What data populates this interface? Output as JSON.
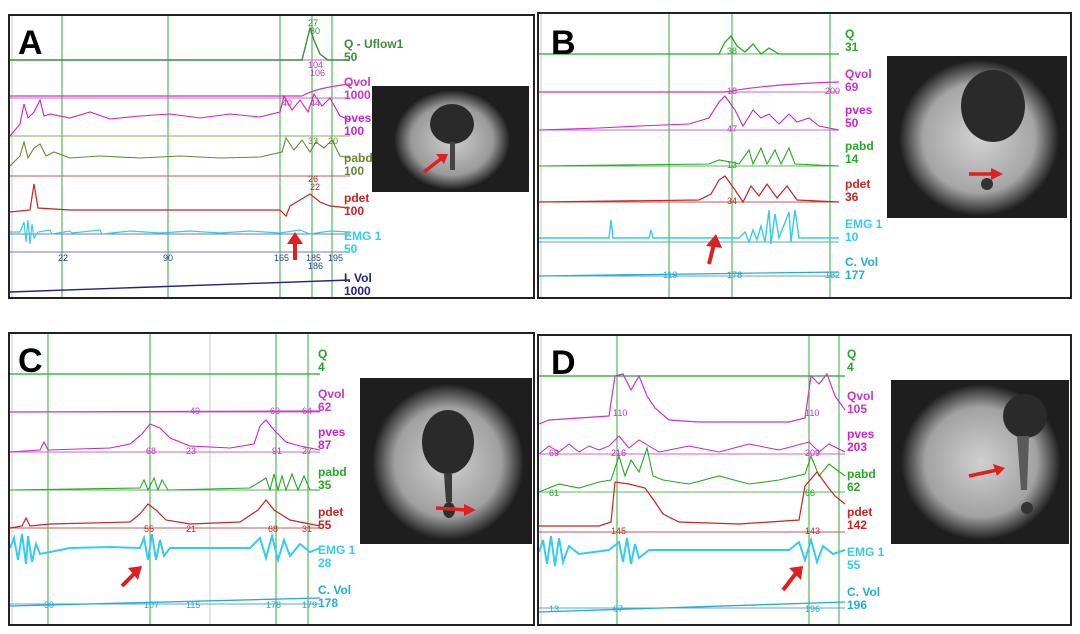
{
  "panels": [
    {
      "letter": "A",
      "channels": [
        {
          "name": "Q - Uflow1",
          "scale": "50",
          "color": "#3c8c3c"
        },
        {
          "name": "Qvol",
          "scale": "1000",
          "color": "#cc33cc"
        },
        {
          "name": "pves",
          "scale": "100",
          "color": "#cc22cc"
        },
        {
          "name": "pabd",
          "scale": "100",
          "color": "#668833"
        },
        {
          "name": "pdet",
          "scale": "100",
          "color": "#cc2222"
        },
        {
          "name": "EMG 1",
          "scale": "50",
          "color": "#33ccee"
        },
        {
          "name": "I. Vol",
          "scale": "1000",
          "color": "#222288"
        }
      ],
      "ticks": [
        "0",
        "0",
        "0",
        "27",
        "30",
        "104",
        "106",
        "40",
        "44",
        "33",
        "20",
        "26",
        "22",
        "22",
        "90",
        "165",
        "185",
        "195",
        "186"
      ]
    },
    {
      "letter": "B",
      "channels": [
        {
          "name": "Q",
          "scale": "31",
          "color": "#22aa22"
        },
        {
          "name": "Qvol",
          "scale": "69",
          "color": "#cc33cc"
        },
        {
          "name": "pves",
          "scale": "50",
          "color": "#cc22cc"
        },
        {
          "name": "pabd",
          "scale": "14",
          "color": "#22aa22"
        },
        {
          "name": "pdet",
          "scale": "36",
          "color": "#cc2222"
        },
        {
          "name": "EMG 1",
          "scale": "10",
          "color": "#33ccee"
        },
        {
          "name": "C. Vol",
          "scale": "177",
          "color": "#22aadd"
        }
      ],
      "ticks": [
        "38",
        "18",
        "200",
        "47",
        "13",
        "34",
        "119",
        "178",
        "182"
      ]
    },
    {
      "letter": "C",
      "channels": [
        {
          "name": "Q",
          "scale": "4",
          "color": "#22aa22"
        },
        {
          "name": "Qvol",
          "scale": "62",
          "color": "#cc33cc"
        },
        {
          "name": "pves",
          "scale": "87",
          "color": "#cc22cc"
        },
        {
          "name": "pabd",
          "scale": "35",
          "color": "#22aa22"
        },
        {
          "name": "pdet",
          "scale": "55",
          "color": "#cc2222"
        },
        {
          "name": "EMG 1",
          "scale": "28",
          "color": "#33ccee"
        },
        {
          "name": "C. Vol",
          "scale": "178",
          "color": "#22aadd"
        }
      ],
      "ticks": [
        "49",
        "63",
        "64",
        "68",
        "23",
        "91",
        "27",
        "55",
        "21",
        "68",
        "31",
        "30",
        "107",
        "115",
        "178",
        "179"
      ]
    },
    {
      "letter": "D",
      "channels": [
        {
          "name": "Q",
          "scale": "4",
          "color": "#22aa22"
        },
        {
          "name": "Qvol",
          "scale": "105",
          "color": "#cc33cc"
        },
        {
          "name": "pves",
          "scale": "203",
          "color": "#cc22cc"
        },
        {
          "name": "pabd",
          "scale": "62",
          "color": "#22aa22"
        },
        {
          "name": "pdet",
          "scale": "142",
          "color": "#cc2222"
        },
        {
          "name": "EMG 1",
          "scale": "55",
          "color": "#33ccee"
        },
        {
          "name": "C. Vol",
          "scale": "196",
          "color": "#22aadd"
        }
      ],
      "ticks": [
        "110",
        "110",
        "69",
        "216",
        "209",
        "61",
        "66",
        "145",
        "143",
        "13",
        "67",
        "196"
      ]
    }
  ]
}
